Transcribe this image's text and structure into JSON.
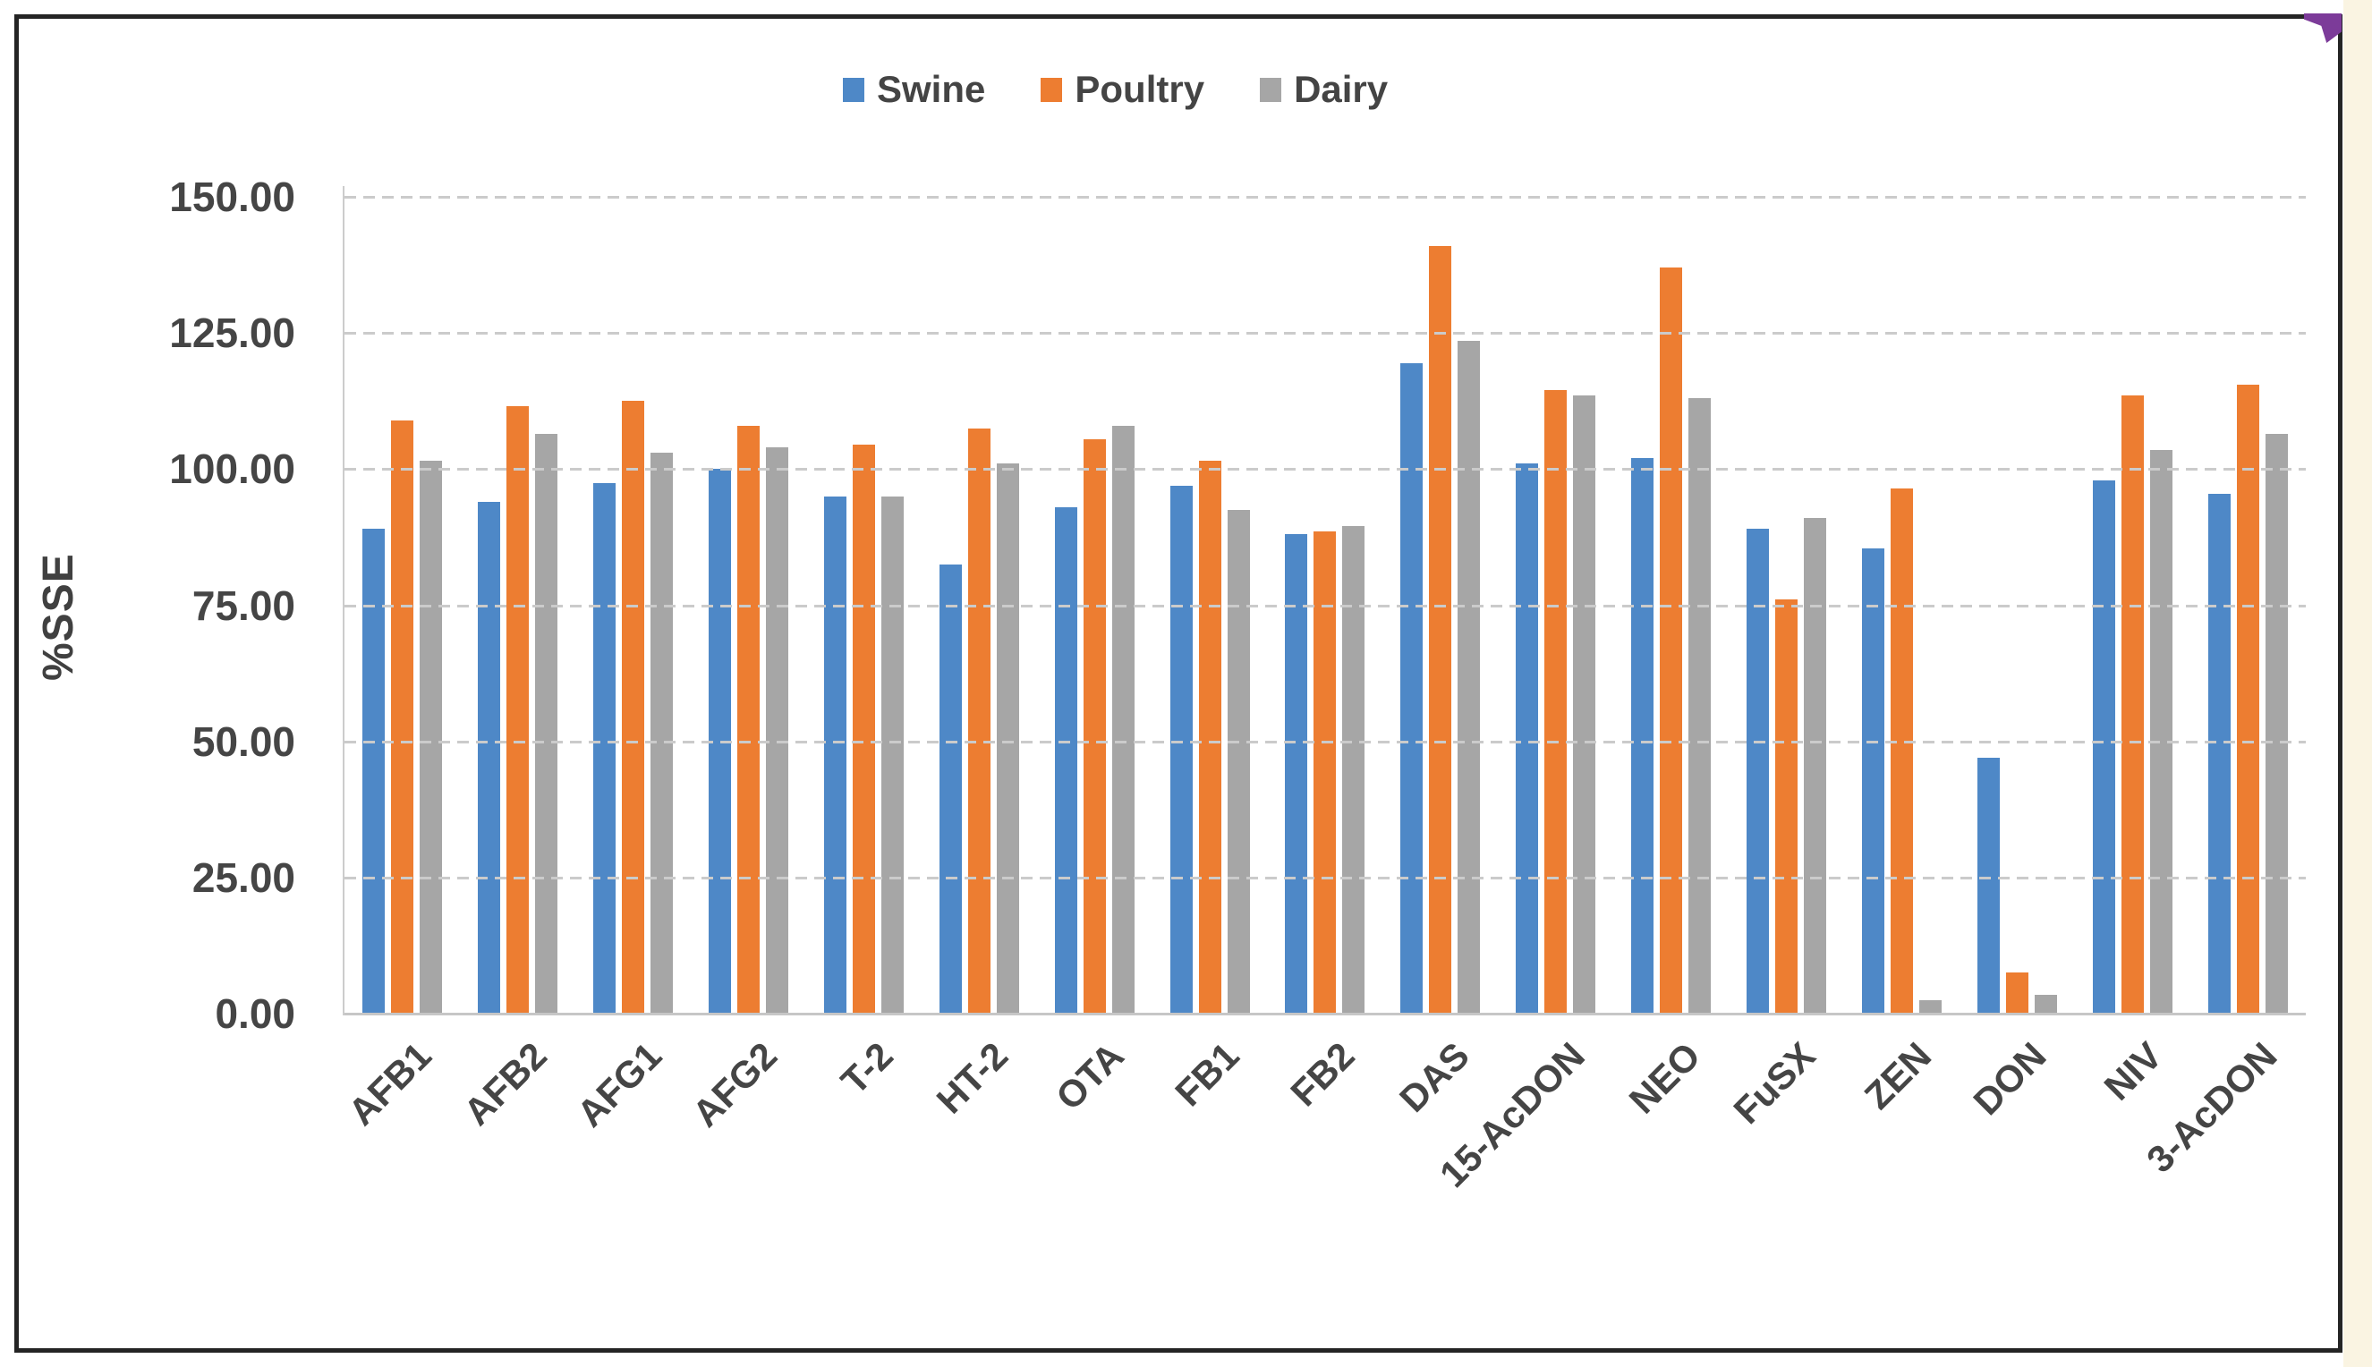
{
  "chart": {
    "y_ticks": [
      "150.00",
      "125.00",
      "100.00",
      "75.00",
      "50.00",
      "25.00",
      "0.00"
    ],
    "corner_marker_color": "#7C3B99",
    "text_color": "#454545"
  },
  "chart_data": {
    "type": "bar",
    "title": "",
    "xlabel": "",
    "ylabel": "%SSE",
    "ylim": [
      0,
      150
    ],
    "grid": "horizontal-dashed",
    "legend_position": "top-center",
    "categories": [
      "AFB1",
      "AFB2",
      "AFG1",
      "AFG2",
      "T-2",
      "HT-2",
      "OTA",
      "FB1",
      "FB2",
      "DAS",
      "15-AcDON",
      "NEO",
      "FuSX",
      "ZEN",
      "DON",
      "NIV",
      "3-AcDON"
    ],
    "series": [
      {
        "name": "Swine",
        "color": "#4E88C7",
        "values": [
          89,
          94,
          97.5,
          100,
          95,
          82.5,
          93,
          97,
          88,
          119.5,
          101,
          102,
          89,
          85.5,
          47,
          98,
          95.5
        ]
      },
      {
        "name": "Poultry",
        "color": "#ED7D31",
        "values": [
          109,
          111.5,
          112.5,
          108,
          104.5,
          107.5,
          105.5,
          101.5,
          88.5,
          141,
          114.5,
          137,
          76,
          96.5,
          7.5,
          113.5,
          115.5
        ]
      },
      {
        "name": "Dairy",
        "color": "#A6A6A6",
        "values": [
          101.5,
          106.5,
          103,
          104,
          95,
          101,
          108,
          92.5,
          89.5,
          123.5,
          113.5,
          113,
          91,
          2.5,
          3.5,
          103.5,
          106.5
        ]
      }
    ]
  }
}
